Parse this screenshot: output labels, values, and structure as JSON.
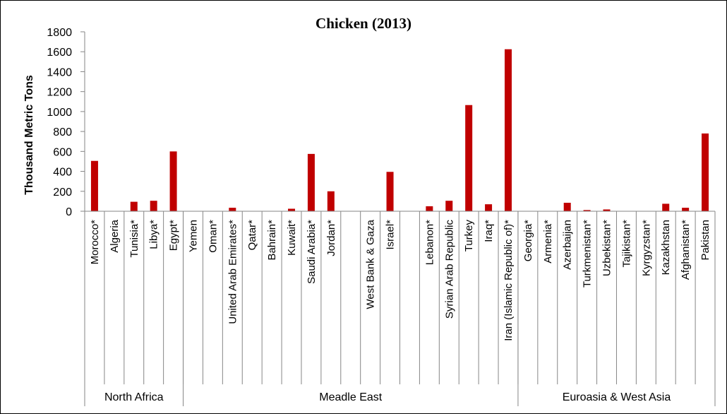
{
  "chart_data": {
    "type": "bar",
    "title": "Chicken (2013)",
    "ylabel": "Thousand Metric Tons",
    "xlabel": "",
    "ylim": [
      0,
      1800
    ],
    "yticks": [
      0,
      200,
      400,
      600,
      800,
      1000,
      1200,
      1400,
      1600,
      1800
    ],
    "grid": false,
    "bar_color": "#c00000",
    "categories": [
      "Morocco*",
      "Algeria",
      "Tunisia*",
      "Libya*",
      "Egypt*",
      "Yemen",
      "Oman*",
      "United Arab Emirates*",
      "Qatar*",
      "Bahrain*",
      "Kuwait*",
      "Saudi Arabia*",
      "Jordan*",
      "",
      "West Bank & Gaza",
      "Israel*",
      "",
      "Lebanon*",
      "Syrian Arab Republic",
      "Turkey",
      "Iraq*",
      "Iran (Islamic Republic of)*",
      "Georgia*",
      "Armenia*",
      "Azerbaijan",
      "Turkmenistan*",
      "Uzbekistan*",
      "Tajikistan*",
      "Kyrgyzstan*",
      "Kazakhstan",
      "Afghanistan*",
      "Pakistan"
    ],
    "values": [
      505,
      0,
      95,
      105,
      600,
      0,
      0,
      35,
      0,
      0,
      25,
      575,
      200,
      0,
      0,
      395,
      0,
      50,
      105,
      1065,
      70,
      1625,
      0,
      0,
      85,
      12,
      18,
      0,
      0,
      75,
      35,
      780
    ],
    "groups": [
      {
        "label": "North Africa",
        "start": 0,
        "count": 5
      },
      {
        "label": "Meadle East",
        "start": 5,
        "count": 17
      },
      {
        "label": "Euroasia & West Asia",
        "start": 22,
        "count": 10
      }
    ]
  }
}
